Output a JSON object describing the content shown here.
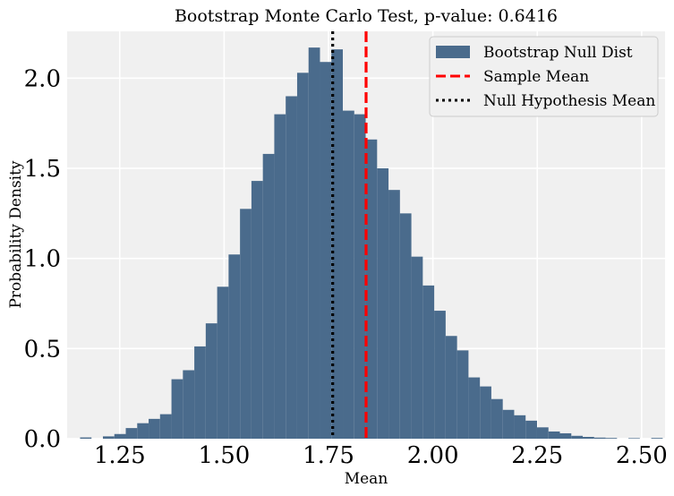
{
  "chart_data": {
    "type": "bar",
    "title": "Bootstrap Monte Carlo Test, p-value: 0.6416",
    "xlabel": "Mean",
    "ylabel": "Probability Density",
    "xlim": [
      1.124,
      2.556
    ],
    "ylim": [
      0.0,
      2.26
    ],
    "xticks": [
      1.25,
      1.5,
      1.75,
      2.0,
      2.25,
      2.5
    ],
    "xtick_labels": [
      "1.25",
      "1.50",
      "1.75",
      "2.00",
      "2.25",
      "2.50"
    ],
    "yticks": [
      0.0,
      0.5,
      1.0,
      1.5,
      2.0
    ],
    "ytick_labels": [
      "0.0",
      "0.5",
      "1.0",
      "1.5",
      "2.0"
    ],
    "grid": true,
    "legend_position": "top-right",
    "bins": {
      "start": 1.155,
      "width": 0.02736,
      "density": [
        0.007,
        0.0,
        0.013,
        0.026,
        0.059,
        0.086,
        0.11,
        0.136,
        0.33,
        0.38,
        0.512,
        0.64,
        0.843,
        1.022,
        1.275,
        1.43,
        1.58,
        1.8,
        1.9,
        2.03,
        2.17,
        2.09,
        2.16,
        1.82,
        1.8,
        1.66,
        1.5,
        1.38,
        1.25,
        1.01,
        0.85,
        0.71,
        0.57,
        0.49,
        0.34,
        0.29,
        0.22,
        0.16,
        0.13,
        0.1,
        0.063,
        0.04,
        0.03,
        0.016,
        0.01,
        0.006,
        0.004,
        0.0,
        0.003,
        0.0,
        0.004
      ]
    },
    "series": [
      {
        "name": "Bootstrap Null Dist",
        "kind": "histogram",
        "color": "#4a6b8c"
      },
      {
        "name": "Sample Mean",
        "kind": "vline",
        "x": 1.84,
        "color": "#ff0000",
        "style": "dashed"
      },
      {
        "name": "Null Hypothesis Mean",
        "kind": "vline",
        "x": 1.76,
        "color": "#000000",
        "style": "dotted"
      }
    ],
    "colors": {
      "background": "#f0f0f0",
      "grid": "#ffffff",
      "bar": "#4a6b8c"
    }
  }
}
